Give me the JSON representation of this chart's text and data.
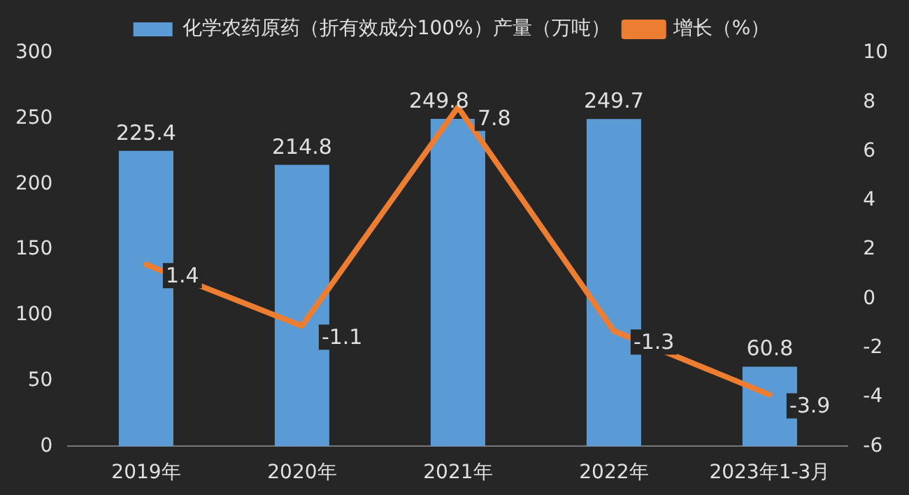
{
  "chart_data": {
    "type": "bar",
    "categories": [
      "2019年",
      "2020年",
      "2021年",
      "2022年",
      "2023年1-3月"
    ],
    "series": [
      {
        "name": "化学农药原药（折有效成分100%）产量（万吨）",
        "color": "#5b9bd5",
        "values": [
          225.4,
          214.8,
          249.8,
          249.7,
          60.8
        ]
      },
      {
        "name": "增长（%）",
        "type": "line",
        "axis": "y2",
        "color": "#ed7d31",
        "values": [
          1.4,
          -1.1,
          7.8,
          -1.3,
          -3.9
        ]
      }
    ],
    "ylim": [
      0,
      300
    ],
    "yticks": [
      0,
      50,
      100,
      150,
      200,
      250,
      300
    ],
    "y2lim": [
      -6,
      10
    ],
    "y2ticks": [
      -6,
      -4,
      -2,
      0,
      2,
      4,
      6,
      8,
      10
    ],
    "grid": false,
    "legend": "top",
    "marker": "none",
    "line_style": "solid",
    "data_labels": true
  }
}
